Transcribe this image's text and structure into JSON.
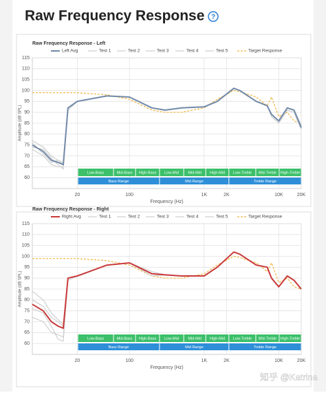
{
  "header": {
    "title": "Raw Frequency Response",
    "help": "?"
  },
  "watermark": "知乎 @Katrina",
  "chart_data": [
    {
      "type": "line",
      "title": "Raw Frequency Response - Left",
      "x_label": "Frequency (Hz)",
      "y_label": "Amplitude (dB SPL)",
      "log_x": true,
      "grid": true,
      "legend": "top",
      "x": [
        5,
        7,
        9,
        11,
        13,
        15,
        20,
        50,
        100,
        200,
        300,
        500,
        1000,
        1500,
        2500,
        3000,
        5000,
        7000,
        8000,
        10000,
        13000,
        16000,
        20000
      ],
      "xlim": [
        5,
        20000
      ],
      "xticks": [
        20,
        100,
        {
          "value": 1000,
          "label": "1K"
        },
        {
          "value": 2000,
          "label": "2K"
        },
        {
          "value": 10000,
          "label": "10K"
        },
        {
          "value": 20000,
          "label": "20K"
        }
      ],
      "ylim": [
        55,
        115
      ],
      "yticks": [
        60,
        65,
        70,
        75,
        80,
        85,
        90,
        95,
        100,
        105,
        110,
        115
      ],
      "bands": {
        "top": [
          "Low-Bass",
          "Mid-Bass",
          "High-Bass",
          "Low-Mid",
          "Mid-Mid",
          "High-Mid",
          "Low-Treble",
          "Mid-Treble",
          "High-Treble"
        ],
        "bottom": [
          "Bass Range",
          "Mid Range",
          "Treble Range"
        ]
      },
      "series": [
        {
          "name": "Left Avg",
          "color": "#7189a8",
          "values": [
            75,
            72,
            68,
            67,
            66,
            92,
            95,
            97.5,
            97,
            92,
            91,
            92,
            92.5,
            95,
            101,
            100,
            95,
            93,
            89,
            86,
            92,
            91,
            83
          ]
        },
        {
          "name": "Test 1",
          "color": "#cfcfcf",
          "values": [
            73,
            70,
            66,
            65,
            65,
            91,
            95,
            97.5,
            97,
            92,
            91,
            92,
            92.5,
            95,
            101,
            100,
            95,
            93,
            88,
            85,
            91,
            90,
            82
          ]
        },
        {
          "name": "Test 2",
          "color": "#cfcfcf",
          "values": [
            77,
            74,
            70,
            68,
            67,
            92,
            95,
            97.5,
            97,
            92,
            91,
            92,
            92.5,
            95,
            101,
            100,
            95,
            93,
            89,
            86,
            92,
            91,
            84
          ]
        },
        {
          "name": "Test 3",
          "color": "#cfcfcf",
          "values": [
            74,
            73,
            69,
            66,
            64,
            92,
            95,
            97.5,
            97,
            92,
            91,
            92,
            92.5,
            95,
            101,
            100,
            95,
            93,
            89,
            86,
            92,
            91,
            83
          ]
        },
        {
          "name": "Test 4",
          "color": "#cfcfcf",
          "values": [
            76,
            71,
            67,
            68,
            66,
            92,
            95,
            97.5,
            97,
            92,
            91,
            92,
            92.5,
            95,
            101,
            100,
            95,
            93,
            89,
            86,
            92,
            91,
            83
          ]
        },
        {
          "name": "Test 5",
          "color": "#cfcfcf",
          "values": [
            75,
            72,
            68,
            67,
            66,
            92,
            95,
            97.5,
            97,
            92,
            91,
            92,
            92.5,
            95,
            101,
            100,
            95,
            93,
            89,
            86,
            92,
            91,
            83
          ]
        },
        {
          "name": "Target Response",
          "color": "#f0b43c",
          "dashed": true,
          "values": [
            99,
            99,
            99,
            99,
            99,
            99,
            99,
            98,
            96,
            91,
            90,
            90,
            92,
            96,
            100,
            99.5,
            97,
            93,
            97,
            88,
            90,
            86,
            85
          ]
        }
      ]
    },
    {
      "type": "line",
      "title": "Raw Frequency Response - Right",
      "x_label": "Frequency (Hz)",
      "y_label": "Amplitude (dB SPL)",
      "log_x": true,
      "grid": true,
      "legend": "top",
      "x": [
        5,
        7,
        9,
        11,
        13,
        15,
        20,
        50,
        100,
        200,
        300,
        500,
        1000,
        1500,
        2500,
        3000,
        5000,
        7000,
        8000,
        10000,
        13000,
        16000,
        20000
      ],
      "xlim": [
        5,
        20000
      ],
      "xticks": [
        20,
        100,
        {
          "value": 1000,
          "label": "1K"
        },
        {
          "value": 2000,
          "label": "2K"
        },
        {
          "value": 10000,
          "label": "10K"
        },
        {
          "value": 20000,
          "label": "20K"
        }
      ],
      "ylim": [
        55,
        115
      ],
      "yticks": [
        60,
        65,
        70,
        75,
        80,
        85,
        90,
        95,
        100,
        105,
        110,
        115
      ],
      "bands": {
        "top": [
          "Low-Bass",
          "Mid-Bass",
          "High-Bass",
          "Low-Mid",
          "Mid-Mid",
          "High-Mid",
          "Low-Treble",
          "Mid-Treble",
          "High-Treble"
        ],
        "bottom": [
          "Bass Range",
          "Mid Range",
          "Treble Range"
        ]
      },
      "series": [
        {
          "name": "Right Avg",
          "color": "#c9393a",
          "values": [
            78,
            75,
            70,
            68,
            67,
            90,
            91,
            96,
            97,
            92,
            91.5,
            91,
            91,
            95,
            102,
            101,
            96,
            95,
            90,
            86,
            91,
            89,
            85
          ]
        },
        {
          "name": "Test 1",
          "color": "#cfcfcf",
          "values": [
            72,
            70,
            65,
            64,
            63,
            89,
            91,
            96,
            97,
            91,
            91.5,
            91,
            91,
            95,
            102,
            101,
            96,
            95,
            90,
            86,
            91,
            89,
            85
          ]
        },
        {
          "name": "Test 2",
          "color": "#cfcfcf",
          "values": [
            84,
            80,
            74,
            71,
            69,
            90,
            91,
            96,
            97,
            93,
            91.5,
            91,
            91,
            95,
            102,
            101,
            96,
            95,
            90,
            86,
            91,
            89,
            85
          ]
        },
        {
          "name": "Test 3",
          "color": "#cfcfcf",
          "values": [
            76,
            74,
            68,
            62,
            61,
            90,
            91,
            96,
            97,
            92,
            91.5,
            91,
            91,
            95,
            102,
            101,
            96,
            95,
            90,
            86,
            91,
            89,
            85
          ]
        },
        {
          "name": "Test 4",
          "color": "#cfcfcf",
          "values": [
            80,
            77,
            72,
            70,
            68,
            90,
            91,
            96,
            97,
            92,
            91.5,
            91,
            91,
            95,
            102,
            101,
            96,
            95,
            90,
            86,
            91,
            89,
            85
          ]
        },
        {
          "name": "Test 5",
          "color": "#cfcfcf",
          "values": [
            78,
            75,
            70,
            68,
            67,
            90,
            91,
            96,
            97,
            92,
            91.5,
            91,
            91,
            95,
            102,
            101,
            96,
            95,
            90,
            86,
            91,
            89,
            85
          ]
        },
        {
          "name": "Target Response",
          "color": "#f0b43c",
          "dashed": true,
          "values": [
            99,
            99,
            99,
            99,
            99,
            99,
            99,
            98,
            96,
            91,
            90,
            90,
            92,
            96,
            100,
            99.5,
            97,
            93,
            97,
            88,
            90,
            86,
            85
          ]
        }
      ]
    }
  ]
}
